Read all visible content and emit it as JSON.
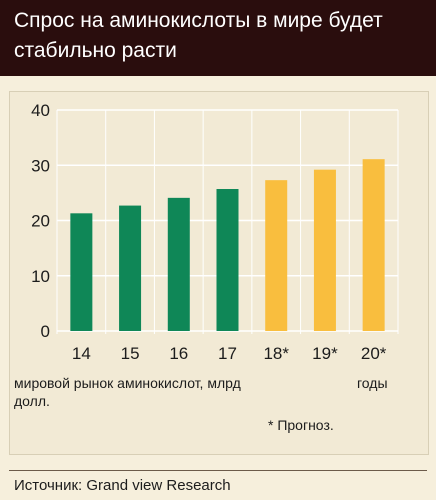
{
  "header": {
    "title": "Спрос на аминокислоты в мире будет стабильно расти"
  },
  "chart_data": {
    "type": "bar",
    "categories": [
      "14",
      "15",
      "16",
      "17",
      "18*",
      "19*",
      "20*"
    ],
    "values": [
      21.3,
      22.7,
      24.1,
      25.7,
      27.3,
      29.2,
      31.1
    ],
    "ylim": [
      0,
      40
    ],
    "yticks": [
      0,
      10,
      20,
      30,
      40
    ],
    "grid": false,
    "colors": {
      "actual": "#0f8757",
      "forecast": "#f9be3e",
      "axis": "#ffffff"
    },
    "forecast_flags": [
      false,
      false,
      false,
      false,
      true,
      true,
      true
    ],
    "ylabel": "мировой рынок аминокислот, млрд долл.",
    "xlabel": "годы",
    "note": "* Прогноз."
  },
  "footer": {
    "source": "Источник: Grand view Research"
  }
}
